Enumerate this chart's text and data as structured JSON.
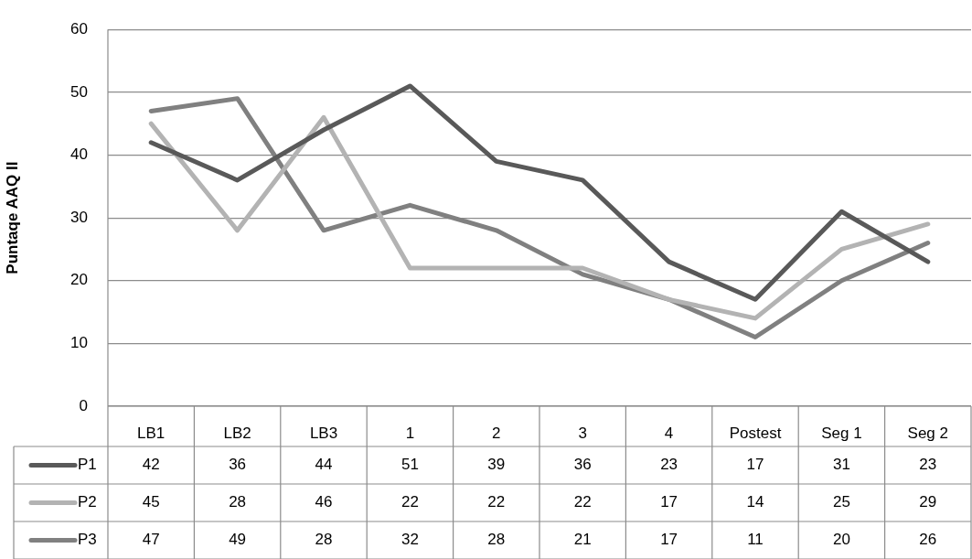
{
  "chart_data": {
    "type": "line",
    "ylabel": "Puntaqe AAQ II",
    "categories": [
      "LB1",
      "LB2",
      "LB3",
      "1",
      "2",
      "3",
      "4",
      "Postest",
      "Seg 1",
      "Seg 2"
    ],
    "series": [
      {
        "name": "P1",
        "color": "#595959",
        "values": [
          42,
          36,
          44,
          51,
          39,
          36,
          23,
          17,
          31,
          23
        ]
      },
      {
        "name": "P2",
        "color": "#b3b3b3",
        "values": [
          45,
          28,
          46,
          22,
          22,
          22,
          17,
          14,
          25,
          29
        ]
      },
      {
        "name": "P3",
        "color": "#808080",
        "values": [
          47,
          49,
          28,
          32,
          28,
          21,
          17,
          11,
          20,
          26
        ]
      }
    ],
    "ylim": [
      0,
      60
    ],
    "yticks": [
      0,
      10,
      20,
      30,
      40,
      50,
      60
    ],
    "grid": "y",
    "legend": "bottom",
    "data_labels": true,
    "marker": "none",
    "line_style": "solid"
  }
}
